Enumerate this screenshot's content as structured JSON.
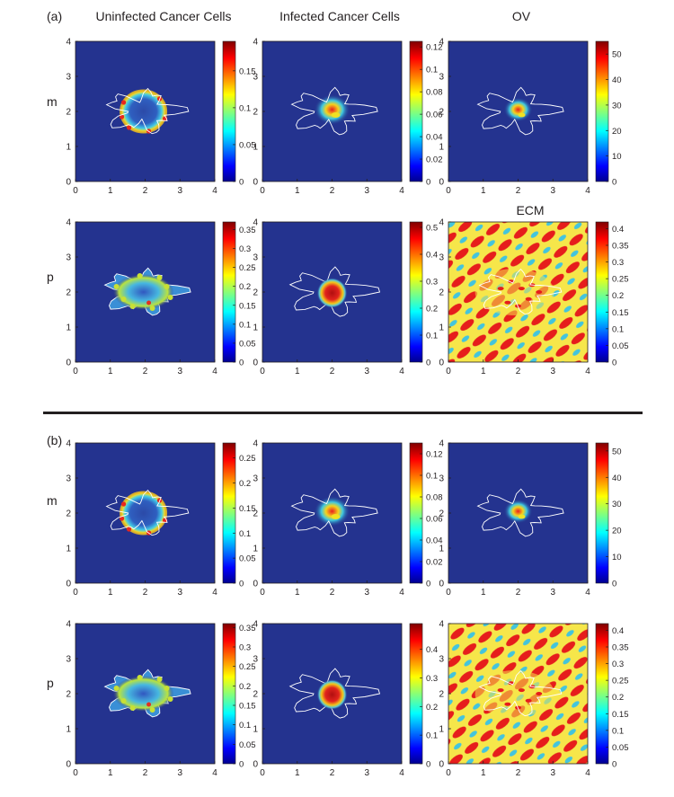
{
  "figure": {
    "panel_labels": [
      "(a)",
      "(b)"
    ],
    "column_titles": [
      "Uninfected Cancer Cells",
      "Infected Cancer Cells",
      "OV"
    ],
    "row_labels": [
      "m",
      "p"
    ],
    "ecm_title": "ECM",
    "colormap": "jet",
    "colormap_colors": [
      "#00008f",
      "#0000ff",
      "#00ffff",
      "#ffff00",
      "#ff0000",
      "#800000"
    ],
    "background_color": "#24338f",
    "boundary_color": "#ffffff"
  },
  "chart_data": [
    {
      "id": "a-m-uninfected",
      "type": "heatmap",
      "panel": "(a)",
      "row": "m",
      "title": "Uninfected Cancer Cells",
      "pattern": "ring",
      "xlim": [
        0,
        4
      ],
      "ylim": [
        0,
        4
      ],
      "xticks": [
        "0",
        "1",
        "2",
        "3",
        "4"
      ],
      "yticks": [
        "0",
        "1",
        "2",
        "3",
        "4"
      ],
      "clim": [
        0,
        0.19
      ],
      "cbar_ticks": [
        "0",
        "0.05",
        "0.1",
        "0.15"
      ],
      "cbar_values": [
        0,
        0.05,
        0.1,
        0.15
      ]
    },
    {
      "id": "a-m-infected",
      "type": "heatmap",
      "panel": "(a)",
      "row": "m",
      "title": "Infected Cancer Cells",
      "pattern": "core",
      "xlim": [
        0,
        4
      ],
      "ylim": [
        0,
        4
      ],
      "xticks": [
        "0",
        "1",
        "2",
        "3",
        "4"
      ],
      "yticks": [
        "0",
        "1",
        "2",
        "3",
        "4"
      ],
      "clim": [
        0,
        0.125
      ],
      "cbar_ticks": [
        "0",
        "0.02",
        "0.04",
        "0.06",
        "0.08",
        "0.1",
        "0.12"
      ],
      "cbar_values": [
        0,
        0.02,
        0.04,
        0.06,
        0.08,
        0.1,
        0.12
      ]
    },
    {
      "id": "a-m-ov",
      "type": "heatmap",
      "panel": "(a)",
      "row": "m",
      "title": "OV",
      "pattern": "core-small",
      "xlim": [
        0,
        4
      ],
      "ylim": [
        0,
        4
      ],
      "xticks": [
        "0",
        "1",
        "2",
        "3",
        "4"
      ],
      "yticks": [
        "0",
        "1",
        "2",
        "3",
        "4"
      ],
      "clim": [
        0,
        55
      ],
      "cbar_ticks": [
        "0",
        "10",
        "20",
        "30",
        "40",
        "50"
      ],
      "cbar_values": [
        0,
        10,
        20,
        30,
        40,
        50
      ]
    },
    {
      "id": "a-p-uninfected",
      "type": "heatmap",
      "panel": "(a)",
      "row": "p",
      "title": "Uninfected Cancer Cells",
      "pattern": "speckled",
      "xlim": [
        0,
        4
      ],
      "ylim": [
        0,
        4
      ],
      "xticks": [
        "0",
        "1",
        "2",
        "3",
        "4"
      ],
      "yticks": [
        "0",
        "1",
        "2",
        "3",
        "4"
      ],
      "clim": [
        0,
        0.37
      ],
      "cbar_ticks": [
        "0",
        "0.05",
        "0.1",
        "0.15",
        "0.2",
        "0.25",
        "0.3",
        "0.35"
      ],
      "cbar_values": [
        0,
        0.05,
        0.1,
        0.15,
        0.2,
        0.25,
        0.3,
        0.35
      ]
    },
    {
      "id": "a-p-infected",
      "type": "heatmap",
      "panel": "(a)",
      "row": "p",
      "title": "Infected Cancer Cells",
      "pattern": "disk",
      "xlim": [
        0,
        4
      ],
      "ylim": [
        0,
        4
      ],
      "xticks": [
        "0",
        "1",
        "2",
        "3",
        "4"
      ],
      "yticks": [
        "0",
        "1",
        "2",
        "3",
        "4"
      ],
      "clim": [
        0,
        0.52
      ],
      "cbar_ticks": [
        "0",
        "0.1",
        "0.2",
        "0.3",
        "0.4",
        "0.5"
      ],
      "cbar_values": [
        0,
        0.1,
        0.2,
        0.3,
        0.4,
        0.5
      ]
    },
    {
      "id": "a-p-ecm",
      "type": "heatmap",
      "panel": "(a)",
      "row": "p",
      "title": "ECM",
      "pattern": "ecm",
      "xlim": [
        0,
        4
      ],
      "ylim": [
        0,
        4
      ],
      "xticks": [
        "0",
        "1",
        "2",
        "3",
        "4"
      ],
      "yticks": [
        "0",
        "1",
        "2",
        "3",
        "4"
      ],
      "clim": [
        0,
        0.42
      ],
      "cbar_ticks": [
        "0",
        "0.05",
        "0.1",
        "0.15",
        "0.2",
        "0.25",
        "0.3",
        "0.35",
        "0.4"
      ],
      "cbar_values": [
        0,
        0.05,
        0.1,
        0.15,
        0.2,
        0.25,
        0.3,
        0.35,
        0.4
      ]
    },
    {
      "id": "b-m-uninfected",
      "type": "heatmap",
      "panel": "(b)",
      "row": "m",
      "title": "Uninfected Cancer Cells",
      "pattern": "ring",
      "xlim": [
        0,
        4
      ],
      "ylim": [
        0,
        4
      ],
      "xticks": [
        "0",
        "1",
        "2",
        "3",
        "4"
      ],
      "yticks": [
        "0",
        "1",
        "2",
        "3",
        "4"
      ],
      "clim": [
        0,
        0.28
      ],
      "cbar_ticks": [
        "0",
        "0.05",
        "0.1",
        "0.15",
        "0.2",
        "0.25"
      ],
      "cbar_values": [
        0,
        0.05,
        0.1,
        0.15,
        0.2,
        0.25
      ]
    },
    {
      "id": "b-m-infected",
      "type": "heatmap",
      "panel": "(b)",
      "row": "m",
      "title": "Infected Cancer Cells",
      "pattern": "core",
      "xlim": [
        0,
        4
      ],
      "ylim": [
        0,
        4
      ],
      "xticks": [
        "0",
        "1",
        "2",
        "3",
        "4"
      ],
      "yticks": [
        "0",
        "1",
        "2",
        "3",
        "4"
      ],
      "clim": [
        0,
        0.13
      ],
      "cbar_ticks": [
        "0",
        "0.02",
        "0.04",
        "0.06",
        "0.08",
        "0.1",
        "0.12"
      ],
      "cbar_values": [
        0,
        0.02,
        0.04,
        0.06,
        0.08,
        0.1,
        0.12
      ]
    },
    {
      "id": "b-m-ov",
      "type": "heatmap",
      "panel": "(b)",
      "row": "m",
      "title": "OV",
      "pattern": "core-small",
      "xlim": [
        0,
        4
      ],
      "ylim": [
        0,
        4
      ],
      "xticks": [
        "0",
        "1",
        "2",
        "3",
        "4"
      ],
      "yticks": [
        "0",
        "1",
        "2",
        "3",
        "4"
      ],
      "clim": [
        0,
        53
      ],
      "cbar_ticks": [
        "0",
        "10",
        "20",
        "30",
        "40",
        "50"
      ],
      "cbar_values": [
        0,
        10,
        20,
        30,
        40,
        50
      ]
    },
    {
      "id": "b-p-uninfected",
      "type": "heatmap",
      "panel": "(b)",
      "row": "p",
      "title": "Uninfected Cancer Cells",
      "pattern": "speckled",
      "xlim": [
        0,
        4
      ],
      "ylim": [
        0,
        4
      ],
      "xticks": [
        "0",
        "1",
        "2",
        "3",
        "4"
      ],
      "yticks": [
        "0",
        "1",
        "2",
        "3",
        "4"
      ],
      "clim": [
        0,
        0.36
      ],
      "cbar_ticks": [
        "0",
        "0.05",
        "0.1",
        "0.15",
        "0.2",
        "0.25",
        "0.3",
        "0.35"
      ],
      "cbar_values": [
        0,
        0.05,
        0.1,
        0.15,
        0.2,
        0.25,
        0.3,
        0.35
      ]
    },
    {
      "id": "b-p-infected",
      "type": "heatmap",
      "panel": "(b)",
      "row": "p",
      "title": "Infected Cancer Cells",
      "pattern": "disk",
      "xlim": [
        0,
        4
      ],
      "ylim": [
        0,
        4
      ],
      "xticks": [
        "0",
        "1",
        "2",
        "3",
        "4"
      ],
      "yticks": [
        "0",
        "1",
        "2",
        "3",
        "4"
      ],
      "clim": [
        0,
        0.49
      ],
      "cbar_ticks": [
        "0",
        "0.1",
        "0.2",
        "0.3",
        "0.4"
      ],
      "cbar_values": [
        0,
        0.1,
        0.2,
        0.3,
        0.4
      ]
    },
    {
      "id": "b-p-ecm",
      "type": "heatmap",
      "panel": "(b)",
      "row": "p",
      "title": "ECM",
      "pattern": "ecm",
      "xlim": [
        0,
        4
      ],
      "ylim": [
        0,
        4
      ],
      "xticks": [
        "0",
        "1",
        "2",
        "3",
        "4"
      ],
      "yticks": [
        "0",
        "1",
        "2",
        "3",
        "4"
      ],
      "clim": [
        0,
        0.42
      ],
      "cbar_ticks": [
        "0",
        "0.05",
        "0.1",
        "0.15",
        "0.2",
        "0.25",
        "0.3",
        "0.35",
        "0.4"
      ],
      "cbar_values": [
        0,
        0.05,
        0.1,
        0.15,
        0.2,
        0.25,
        0.3,
        0.35,
        0.4
      ]
    }
  ]
}
